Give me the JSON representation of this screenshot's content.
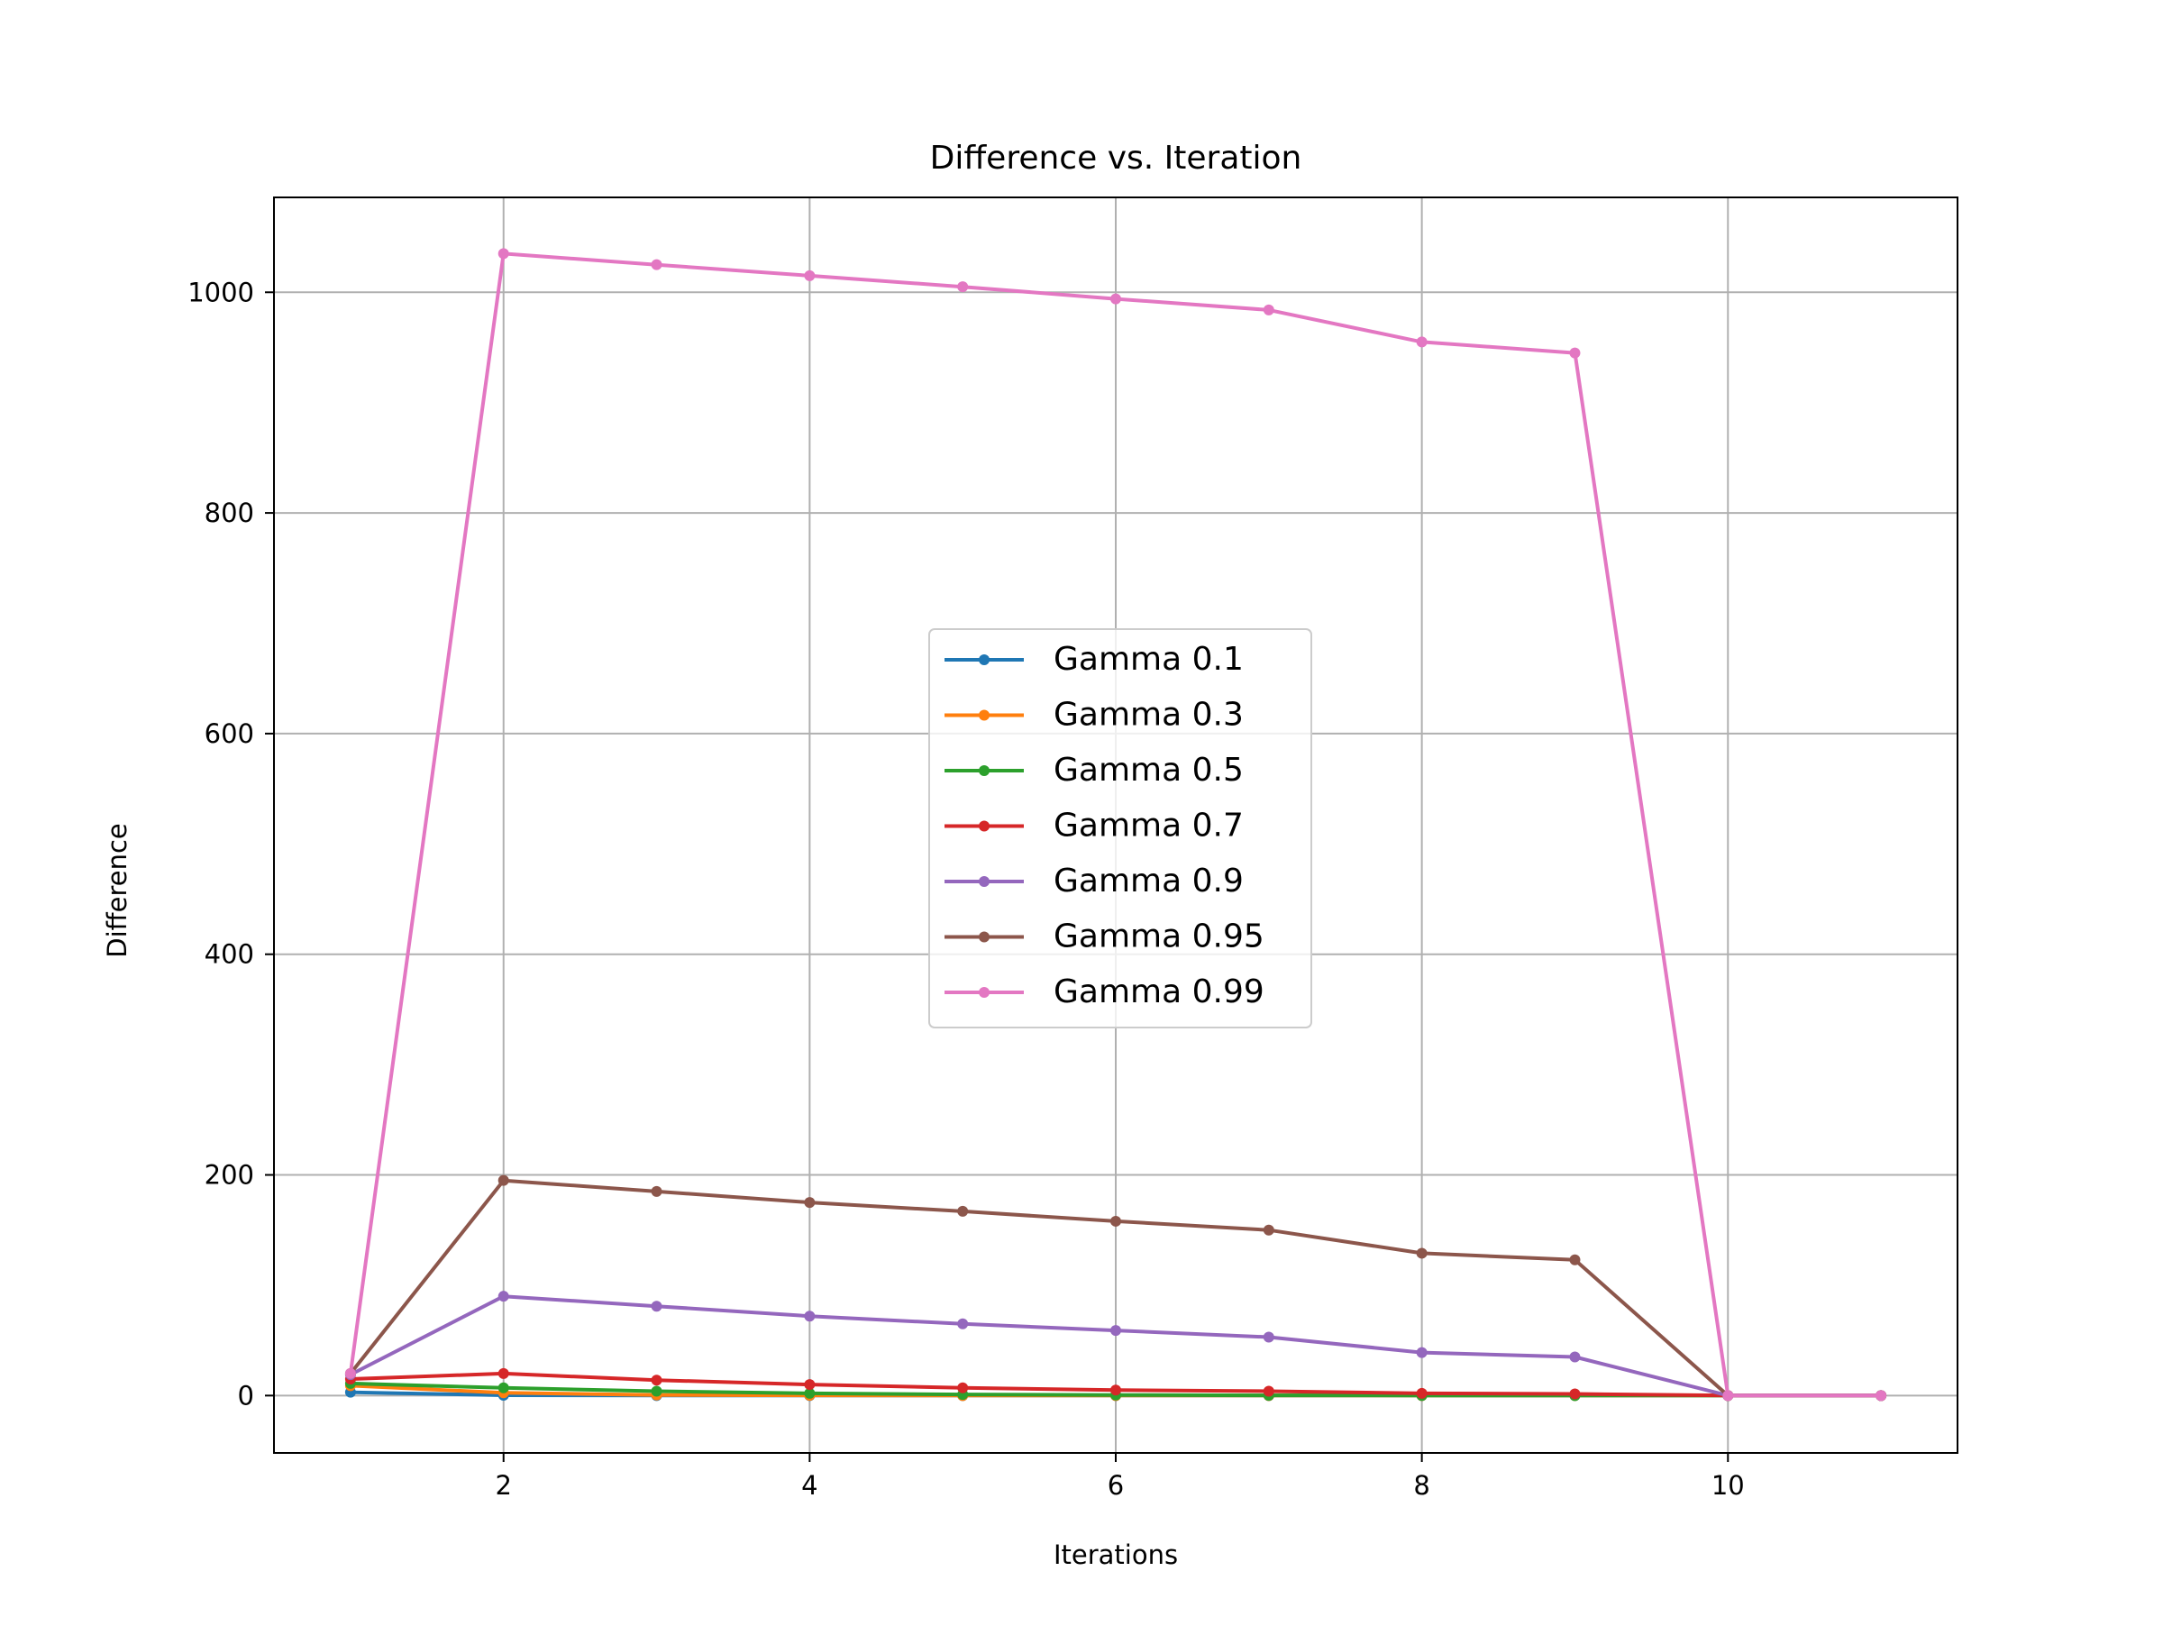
{
  "chart_data": {
    "type": "line",
    "title": "Difference vs. Iteration",
    "xlabel": "Iterations",
    "ylabel": "Difference",
    "xlim": [
      0.5,
      11.5
    ],
    "ylim": [
      -52,
      1086
    ],
    "xticks": [
      2,
      4,
      6,
      8,
      10
    ],
    "yticks": [
      0,
      200,
      400,
      600,
      800,
      1000
    ],
    "grid": true,
    "legend_position": "center",
    "x": [
      1,
      2,
      3,
      4,
      5,
      6,
      7,
      8,
      9,
      10,
      11
    ],
    "series": [
      {
        "name": "Gamma 0.1",
        "color": "#1f77b4",
        "values": [
          3,
          0.3,
          0,
          0,
          0,
          0,
          0,
          0,
          0,
          0,
          0
        ]
      },
      {
        "name": "Gamma 0.3",
        "color": "#ff7f0e",
        "values": [
          9,
          2.5,
          0.5,
          0.2,
          0,
          0,
          0,
          0,
          0,
          0,
          0
        ]
      },
      {
        "name": "Gamma 0.5",
        "color": "#2ca02c",
        "values": [
          11,
          7,
          4,
          2,
          1,
          0.5,
          0.2,
          0.1,
          0,
          0,
          0
        ]
      },
      {
        "name": "Gamma 0.7",
        "color": "#d62728",
        "values": [
          15,
          20,
          14,
          10,
          7,
          5,
          4,
          2,
          1.5,
          0,
          0
        ]
      },
      {
        "name": "Gamma 0.9",
        "color": "#9467bd",
        "values": [
          19,
          90,
          81,
          72,
          65,
          59,
          53,
          39,
          35,
          0,
          0
        ]
      },
      {
        "name": "Gamma 0.95",
        "color": "#8c564b",
        "values": [
          20,
          195,
          185,
          175,
          167,
          158,
          150,
          129,
          123,
          0,
          0
        ]
      },
      {
        "name": "Gamma 0.99",
        "color": "#e377c2",
        "values": [
          20,
          1035,
          1025,
          1015,
          1005,
          994,
          984,
          955,
          945,
          0,
          0
        ]
      }
    ]
  }
}
